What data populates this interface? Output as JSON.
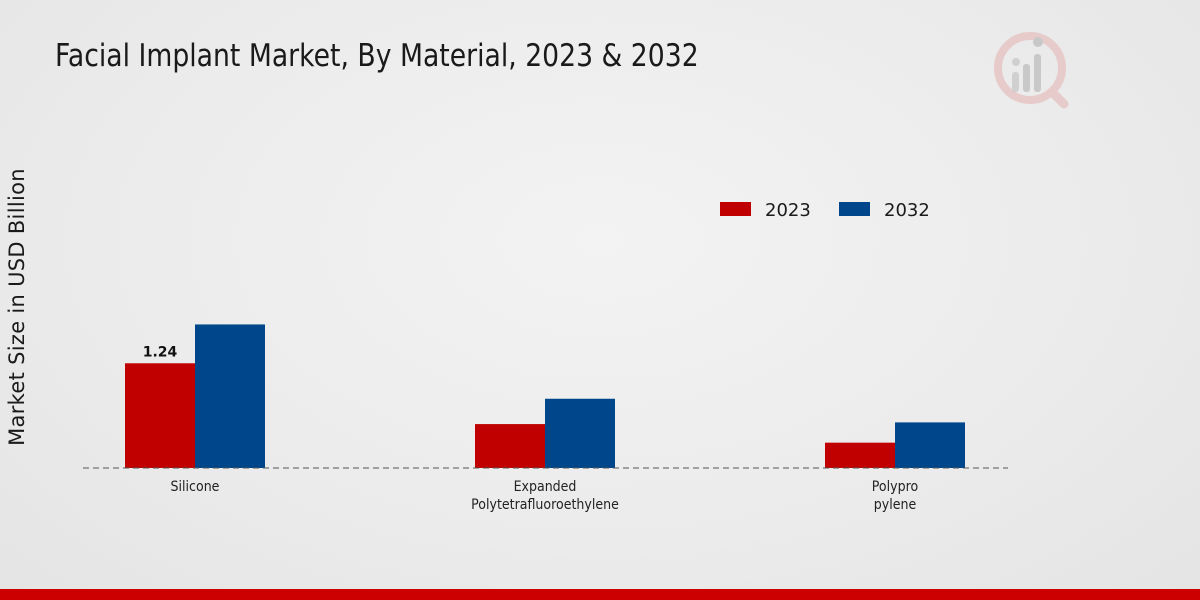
{
  "title": "Facial Implant Market, By Material, 2023 & 2032",
  "colors": {
    "series2023": "#c00000",
    "series2032": "#00468b",
    "accent_bar": "#cc0000"
  },
  "logo": {
    "icon": "market-research-logo-icon"
  },
  "chart_data": {
    "type": "bar",
    "title": "Facial Implant Market, By Material, 2023 & 2032",
    "xlabel": "",
    "ylabel": "Market Size in USD Billion",
    "categories": [
      "Silicone",
      "Expanded Polytetrafluoroethylene",
      "Polypropylene"
    ],
    "category_lines": [
      [
        "Silicone"
      ],
      [
        "Expanded",
        "Polytetrafluoroethylene"
      ],
      [
        "Polypro",
        "pylene"
      ]
    ],
    "series": [
      {
        "name": "2023",
        "color": "#c00000",
        "values": [
          1.24,
          0.52,
          0.3
        ]
      },
      {
        "name": "2032",
        "color": "#00468b",
        "values": [
          1.7,
          0.82,
          0.54
        ]
      }
    ],
    "data_labels": [
      {
        "series": 0,
        "index": 0,
        "text": "1.24"
      }
    ],
    "ylim": [
      0,
      4.5
    ],
    "grid": false,
    "legend": "top-right"
  }
}
